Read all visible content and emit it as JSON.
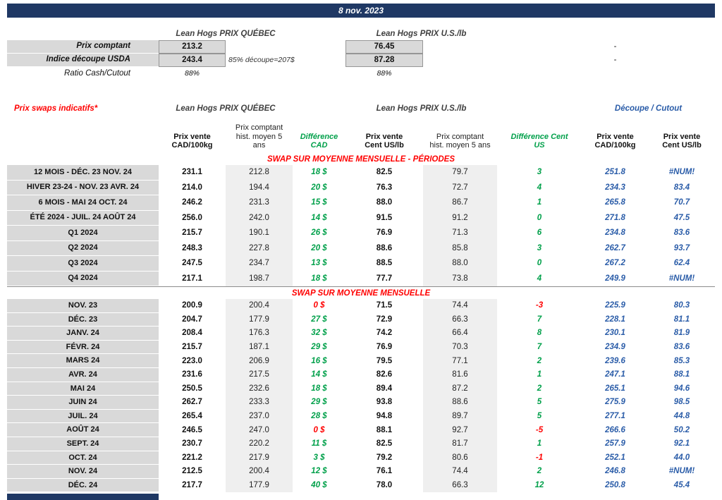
{
  "title_bar": {
    "date": "8 nov. 2023"
  },
  "colors": {
    "header_navy": "#1F3864",
    "label_gray": "#D9D9D9",
    "accent_red": "#FF0000",
    "positive_green": "#00A04A",
    "cutout_blue": "#2A5CA8"
  },
  "spot": {
    "quebec_header": "Lean Hogs PRIX QUÉBEC",
    "us_header": "Lean Hogs PRIX U.S./lb",
    "rows": [
      {
        "label": "Prix comptant",
        "qc": "213.2",
        "note": "",
        "us": "76.45",
        "right": "-"
      },
      {
        "label": "Indice découpe USDA",
        "qc": "243.4",
        "note": "85% découpe=207$",
        "us": "87.28",
        "right": "-"
      },
      {
        "label": "Ratio Cash/Cutout",
        "qc": "88%",
        "note": "",
        "us": "88%",
        "right": ""
      }
    ]
  },
  "swaps": {
    "title": "Prix swaps indicatifs*",
    "quebec_header": "Lean Hogs PRIX QUÉBEC",
    "us_header": "Lean Hogs PRIX U.S./lb",
    "cutout_header": "Découpe / Cutout",
    "col_headers": {
      "pv_cad": "Prix vente CAD/100kg",
      "hist_cad": "Prix comptant hist. moyen 5 ans",
      "diff_cad": "Différence CAD",
      "pv_us": "Prix vente Cent US/lb",
      "hist_us": "Prix comptant hist. moyen 5 ans",
      "diff_us": "Différence Cent US",
      "cut_cad": "Prix vente CAD/100kg",
      "cut_us": "Prix vente Cent US/lb"
    },
    "sections": [
      {
        "header": "SWAP SUR MOYENNE MENSUELLE - PÉRIODES",
        "rows": [
          {
            "label": "12 MOIS - DÉC. 23 NOV. 24",
            "pv_cad": "231.1",
            "hist_cad": "212.8",
            "diff_cad": "18 $",
            "pv_us": "82.5",
            "hist_us": "79.7",
            "diff_us": "3",
            "cut_cad": "251.8",
            "cut_us": "#NUM!"
          },
          {
            "label": "HIVER 23-24 - NOV. 23 AVR. 24",
            "pv_cad": "214.0",
            "hist_cad": "194.4",
            "diff_cad": "20 $",
            "pv_us": "76.3",
            "hist_us": "72.7",
            "diff_us": "4",
            "cut_cad": "234.3",
            "cut_us": "83.4"
          },
          {
            "label": "6 MOIS - MAI 24 OCT. 24",
            "pv_cad": "246.2",
            "hist_cad": "231.3",
            "diff_cad": "15 $",
            "pv_us": "88.0",
            "hist_us": "86.7",
            "diff_us": "1",
            "cut_cad": "265.8",
            "cut_us": "70.7"
          },
          {
            "label": "ÉTÉ 2024 - JUIL. 24 AOÛT 24",
            "pv_cad": "256.0",
            "hist_cad": "242.0",
            "diff_cad": "14 $",
            "pv_us": "91.5",
            "hist_us": "91.2",
            "diff_us": "0",
            "cut_cad": "271.8",
            "cut_us": "47.5"
          },
          {
            "label": "Q1 2024",
            "pv_cad": "215.7",
            "hist_cad": "190.1",
            "diff_cad": "26 $",
            "pv_us": "76.9",
            "hist_us": "71.3",
            "diff_us": "6",
            "cut_cad": "234.8",
            "cut_us": "83.6"
          },
          {
            "label": "Q2 2024",
            "pv_cad": "248.3",
            "hist_cad": "227.8",
            "diff_cad": "20 $",
            "pv_us": "88.6",
            "hist_us": "85.8",
            "diff_us": "3",
            "cut_cad": "262.7",
            "cut_us": "93.7"
          },
          {
            "label": "Q3 2024",
            "pv_cad": "247.5",
            "hist_cad": "234.7",
            "diff_cad": "13 $",
            "pv_us": "88.5",
            "hist_us": "88.0",
            "diff_us": "0",
            "cut_cad": "267.2",
            "cut_us": "62.4"
          },
          {
            "label": "Q4 2024",
            "pv_cad": "217.1",
            "hist_cad": "198.7",
            "diff_cad": "18 $",
            "pv_us": "77.7",
            "hist_us": "73.8",
            "diff_us": "4",
            "cut_cad": "249.9",
            "cut_us": "#NUM!"
          }
        ]
      },
      {
        "header": "SWAP SUR MOYENNE MENSUELLE",
        "rows": [
          {
            "label": "NOV. 23",
            "pv_cad": "200.9",
            "hist_cad": "200.4",
            "diff_cad": "0 $",
            "diff_cad_c": "r",
            "pv_us": "71.5",
            "hist_us": "74.4",
            "diff_us": "-3",
            "diff_us_c": "r",
            "cut_cad": "225.9",
            "cut_us": "80.3"
          },
          {
            "label": "DÉC. 23",
            "pv_cad": "204.7",
            "hist_cad": "177.9",
            "diff_cad": "27 $",
            "pv_us": "72.9",
            "hist_us": "66.3",
            "diff_us": "7",
            "cut_cad": "228.1",
            "cut_us": "81.1"
          },
          {
            "label": "JANV. 24",
            "pv_cad": "208.4",
            "hist_cad": "176.3",
            "diff_cad": "32 $",
            "pv_us": "74.2",
            "hist_us": "66.4",
            "diff_us": "8",
            "cut_cad": "230.1",
            "cut_us": "81.9"
          },
          {
            "label": "FÉVR. 24",
            "pv_cad": "215.7",
            "hist_cad": "187.1",
            "diff_cad": "29 $",
            "pv_us": "76.9",
            "hist_us": "70.3",
            "diff_us": "7",
            "cut_cad": "234.9",
            "cut_us": "83.6"
          },
          {
            "label": "MARS 24",
            "pv_cad": "223.0",
            "hist_cad": "206.9",
            "diff_cad": "16 $",
            "pv_us": "79.5",
            "hist_us": "77.1",
            "diff_us": "2",
            "cut_cad": "239.6",
            "cut_us": "85.3"
          },
          {
            "label": "AVR. 24",
            "pv_cad": "231.6",
            "hist_cad": "217.5",
            "diff_cad": "14 $",
            "pv_us": "82.6",
            "hist_us": "81.6",
            "diff_us": "1",
            "cut_cad": "247.1",
            "cut_us": "88.1"
          },
          {
            "label": "MAI 24",
            "pv_cad": "250.5",
            "hist_cad": "232.6",
            "diff_cad": "18 $",
            "pv_us": "89.4",
            "hist_us": "87.2",
            "diff_us": "2",
            "cut_cad": "265.1",
            "cut_us": "94.6"
          },
          {
            "label": "JUIN 24",
            "pv_cad": "262.7",
            "hist_cad": "233.3",
            "diff_cad": "29 $",
            "pv_us": "93.8",
            "hist_us": "88.6",
            "diff_us": "5",
            "cut_cad": "275.9",
            "cut_us": "98.5"
          },
          {
            "label": "JUIL. 24",
            "pv_cad": "265.4",
            "hist_cad": "237.0",
            "diff_cad": "28 $",
            "pv_us": "94.8",
            "hist_us": "89.7",
            "diff_us": "5",
            "cut_cad": "277.1",
            "cut_us": "44.8"
          },
          {
            "label": "AOÛT 24",
            "pv_cad": "246.5",
            "hist_cad": "247.0",
            "diff_cad": "0 $",
            "diff_cad_c": "r",
            "pv_us": "88.1",
            "hist_us": "92.7",
            "diff_us": "-5",
            "diff_us_c": "r",
            "cut_cad": "266.6",
            "cut_us": "50.2"
          },
          {
            "label": "SEPT. 24",
            "pv_cad": "230.7",
            "hist_cad": "220.2",
            "diff_cad": "11 $",
            "pv_us": "82.5",
            "hist_us": "81.7",
            "diff_us": "1",
            "cut_cad": "257.9",
            "cut_us": "92.1"
          },
          {
            "label": "OCT. 24",
            "pv_cad": "221.2",
            "hist_cad": "217.9",
            "diff_cad": "3 $",
            "pv_us": "79.2",
            "hist_us": "80.6",
            "diff_us": "-1",
            "diff_us_c": "r",
            "cut_cad": "252.1",
            "cut_us": "44.0"
          },
          {
            "label": "NOV. 24",
            "pv_cad": "212.5",
            "hist_cad": "200.4",
            "diff_cad": "12 $",
            "pv_us": "76.1",
            "hist_us": "74.4",
            "diff_us": "2",
            "cut_cad": "246.8",
            "cut_us": "#NUM!"
          },
          {
            "label": "DÉC. 24",
            "pv_cad": "217.7",
            "hist_cad": "177.9",
            "diff_cad": "40 $",
            "pv_us": "78.0",
            "hist_us": "66.3",
            "diff_us": "12",
            "cut_cad": "250.8",
            "cut_us": "45.4"
          }
        ]
      }
    ]
  }
}
